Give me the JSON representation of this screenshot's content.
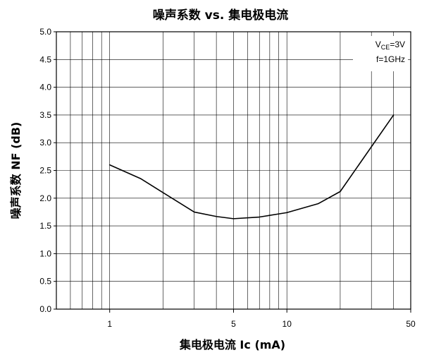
{
  "chart_data": {
    "type": "line",
    "title": "噪声系数 vs. 集电极电流",
    "xlabel": "集电极电流 Ic (mA)",
    "ylabel": "噪声系数 NF (dB)",
    "xscale": "log",
    "xlim": [
      0.5,
      50
    ],
    "ylim": [
      0,
      5
    ],
    "xticks": [
      {
        "value": 1,
        "label": "1"
      },
      {
        "value": 5,
        "label": "5"
      },
      {
        "value": 10,
        "label": "10"
      },
      {
        "value": 50,
        "label": "50"
      }
    ],
    "yticks": [
      {
        "value": 0.0,
        "label": "0.0"
      },
      {
        "value": 0.5,
        "label": "0.5"
      },
      {
        "value": 1.0,
        "label": "1.0"
      },
      {
        "value": 1.5,
        "label": "1.5"
      },
      {
        "value": 2.0,
        "label": "2.0"
      },
      {
        "value": 2.5,
        "label": "2.5"
      },
      {
        "value": 3.0,
        "label": "3.0"
      },
      {
        "value": 3.5,
        "label": "3.5"
      },
      {
        "value": 4.0,
        "label": "4.0"
      },
      {
        "value": 4.5,
        "label": "4.5"
      },
      {
        "value": 5.0,
        "label": "5.0"
      }
    ],
    "grid": true,
    "legend_position": "top-right",
    "annotations": [
      {
        "prefix": "V",
        "sub": "CE",
        "suffix": "=3V"
      },
      {
        "prefix": "f=1GHz",
        "sub": "",
        "suffix": ""
      }
    ],
    "series": [
      {
        "x": [
          1,
          1.5,
          2,
          3,
          4,
          5,
          7,
          10,
          15,
          20,
          40
        ],
        "y": [
          2.6,
          2.35,
          2.1,
          1.75,
          1.67,
          1.63,
          1.66,
          1.74,
          1.9,
          2.12,
          3.5
        ]
      }
    ],
    "colors": {
      "line": "#000000",
      "grid": "#000000",
      "background": "#ffffff"
    }
  }
}
